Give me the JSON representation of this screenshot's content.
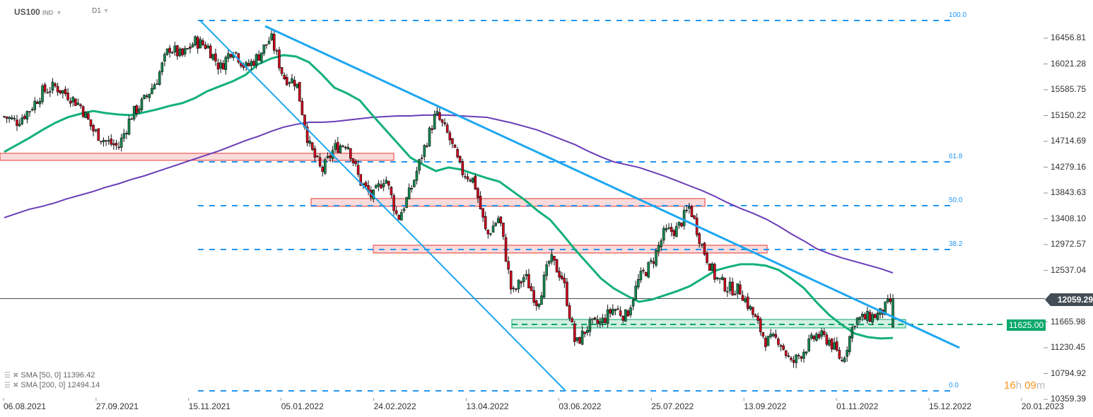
{
  "header": {
    "symbol": "US100",
    "type": "IND",
    "timeframe": "D1"
  },
  "legend": [
    {
      "label": "SMA [50, 0] 11396.42",
      "color": "#13b07a"
    },
    {
      "label": "SMA [200, 0] 12494.14",
      "color": "#6a3db8"
    }
  ],
  "current_price": "12059.29",
  "level_label": "11625.00",
  "countdown": {
    "hours": "16",
    "h": "h",
    "minutes": "09",
    "m": "m"
  },
  "colors": {
    "bull": "#138a4f",
    "bear": "#d0021b",
    "sma50": "#13b07a",
    "sma200": "#6a3db8",
    "trendline": "#1ea7f0",
    "fib": "#2196f3",
    "zone_red": "#e53935",
    "zone_green": "#0ba86b",
    "price_line": "#434d56"
  },
  "chart_data": {
    "type": "candlestick",
    "symbol": "US100",
    "timeframe": "D1",
    "x_ticks": [
      "06.08.2021",
      "27.09.2021",
      "15.11.2021",
      "05.01.2022",
      "24.02.2022",
      "13.04.2022",
      "03.06.2022",
      "25.07.2022",
      "13.09.2022",
      "01.11.2022",
      "15.12.2022",
      "20.01.2023"
    ],
    "y_ticks": [
      "16456.81",
      "16021.28",
      "15585.75",
      "15150.22",
      "14714.69",
      "14279.16",
      "13843.63",
      "13408.10",
      "12972.57",
      "12537.04",
      "12059.29",
      "11665.98",
      "11230.45",
      "10794.92",
      "10359.39"
    ],
    "weekly_closes": [
      15132,
      15050,
      15250,
      15550,
      15640,
      15500,
      15320,
      14900,
      14714,
      14620,
      15150,
      15400,
      15750,
      16300,
      16150,
      16400,
      16325,
      15950,
      16300,
      15950,
      16150,
      16470,
      15800,
      15720,
      14655,
      14200,
      14600,
      14700,
      14050,
      13760,
      14130,
      13400,
      13879,
      14550,
      15180,
      14800,
      14210,
      14058,
      13110,
      13450,
      12120,
      12450,
      11970,
      12740,
      12400,
      11270,
      11600,
      11650,
      11900,
      11760,
      12388,
      12660,
      13170,
      13230,
      13617,
      12925,
      12420,
      12240,
      12200,
      11780,
      11340,
      11380,
      10950,
      11195,
      11450,
      11350,
      11000,
      11700,
      11740,
      11800,
      12059.29
    ],
    "sma50": [
      14536,
      14656,
      14775,
      14906,
      15025,
      15121,
      15180,
      15228,
      15192,
      15168,
      15157,
      15204,
      15252,
      15312,
      15359,
      15443,
      15562,
      15646,
      15729,
      15837,
      16016,
      16111,
      16171,
      16147,
      16051,
      15849,
      15622,
      15526,
      15407,
      15157,
      14918,
      14679,
      14441,
      14321,
      14214,
      14274,
      14238,
      14166,
      14095,
      14035,
      13880,
      13725,
      13546,
      13391,
      13140,
      12878,
      12640,
      12401,
      12234,
      12114,
      12007,
      12043,
      12114,
      12186,
      12270,
      12401,
      12532,
      12592,
      12640,
      12640,
      12616,
      12544,
      12401,
      12234,
      11995,
      11780,
      11613,
      11470,
      11411,
      11387,
      11396.42
    ],
    "sma200": [
      13427,
      13498,
      13570,
      13618,
      13677,
      13749,
      13808,
      13868,
      13940,
      13999,
      14071,
      14130,
      14202,
      14274,
      14345,
      14417,
      14489,
      14560,
      14644,
      14727,
      14799,
      14882,
      14954,
      15002,
      15037,
      15037,
      15049,
      15073,
      15097,
      15121,
      15133,
      15145,
      15145,
      15157,
      15157,
      15157,
      15145,
      15133,
      15121,
      15073,
      15025,
      14966,
      14906,
      14823,
      14739,
      14656,
      14548,
      14453,
      14369,
      14322,
      14274,
      14202,
      14130,
      14047,
      13963,
      13880,
      13784,
      13677,
      13582,
      13498,
      13403,
      13284,
      13152,
      13033,
      12902,
      12818,
      12747,
      12687,
      12627,
      12568,
      12494.14
    ],
    "fib_levels": [
      {
        "label": "100.0",
        "value": 16755
      },
      {
        "label": "61.8",
        "value": 14369
      },
      {
        "label": "50.0",
        "value": 13629
      },
      {
        "label": "38.2",
        "value": 12889
      },
      {
        "label": "0.0",
        "value": 10503
      }
    ],
    "zones": [
      {
        "from": 14394,
        "to": 14513,
        "color": "red"
      },
      {
        "from": 13618,
        "to": 13749,
        "color": "red"
      },
      {
        "from": 12830,
        "to": 12961,
        "color": "red"
      },
      {
        "from": 11565,
        "to": 11708,
        "color": "green"
      }
    ],
    "horizontal_level": 11625.0,
    "last_price": 12059.29
  }
}
